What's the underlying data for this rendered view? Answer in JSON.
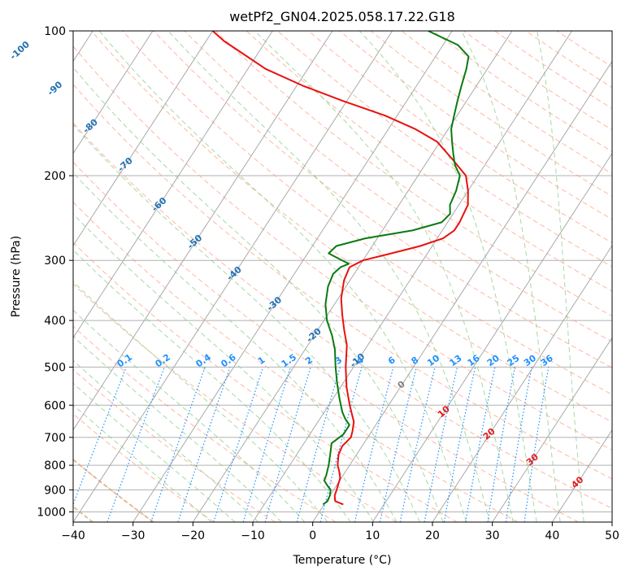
{
  "chart_data": {
    "type": "skew-t",
    "title": "wetPf2_GN04.2025.058.17.22.G18",
    "xlabel": "Temperature (°C)",
    "ylabel": "Pressure (hPa)",
    "xlim": [
      -40,
      50
    ],
    "ylim": [
      1050,
      100
    ],
    "y_scale": "log",
    "grid": true,
    "x_ticks": [
      -40,
      -30,
      -20,
      -10,
      0,
      10,
      20,
      30,
      40,
      50
    ],
    "x_tick_labels": [
      "−40",
      "−30",
      "−20",
      "−10",
      "0",
      "10",
      "20",
      "30",
      "40",
      "50"
    ],
    "y_ticks": [
      100,
      200,
      300,
      400,
      500,
      600,
      700,
      800,
      900,
      1000
    ],
    "y_tick_labels": [
      "100",
      "200",
      "300",
      "400",
      "500",
      "600",
      "700",
      "800",
      "900",
      "1000"
    ],
    "mixing_ratio_labels": [
      "0.1",
      "0.2",
      "0.4",
      "0.6",
      "1",
      "1.5",
      "2",
      "3",
      "4",
      "6",
      "8",
      "10",
      "13",
      "16",
      "20",
      "25",
      "30",
      "36"
    ],
    "isotherm_labels_blue": [
      "-100",
      "-90",
      "-80",
      "-70",
      "-60",
      "-50",
      "-40",
      "-30",
      "-20",
      "-10"
    ],
    "isotherm_label_gray": "0",
    "isotherm_labels_red": [
      "10",
      "20",
      "30",
      "40"
    ],
    "colors": {
      "temperature": "#e8110f",
      "dewpoint": "#0a7a10",
      "isotherm_label_cold": "#2171b5",
      "isotherm_label_warm": "#e31a1c",
      "mixing_ratio": "#1e90ff",
      "dry_adiabat": "#ff9f80",
      "moist_adiabat": "#8fcf8f",
      "isotherm": "#a9a9a9",
      "special": "#d2b48c"
    },
    "series": [
      {
        "points": [
          [
            3.2,
            965
          ],
          [
            1.5,
            950
          ],
          [
            0.8,
            925
          ],
          [
            0.5,
            900
          ],
          [
            -0.2,
            850
          ],
          [
            -1.2,
            820
          ],
          [
            -2.0,
            800
          ],
          [
            -3.0,
            760
          ],
          [
            -3.3,
            730
          ],
          [
            -2.8,
            700
          ],
          [
            -3.2,
            680
          ],
          [
            -4.0,
            650
          ],
          [
            -6.5,
            600
          ],
          [
            -9.0,
            550
          ],
          [
            -11.3,
            500
          ],
          [
            -13.5,
            450
          ],
          [
            -15.5,
            420
          ],
          [
            -17.5,
            390
          ],
          [
            -19.5,
            360
          ],
          [
            -21.0,
            330
          ],
          [
            -21.5,
            310
          ],
          [
            -20.0,
            300
          ],
          [
            -16.0,
            290
          ],
          [
            -12.0,
            280
          ],
          [
            -9.0,
            270
          ],
          [
            -8.0,
            260
          ],
          [
            -8.0,
            250
          ],
          [
            -8.5,
            230
          ],
          [
            -10.0,
            215
          ],
          [
            -12.0,
            200
          ],
          [
            -16.0,
            185
          ],
          [
            -20.5,
            170
          ],
          [
            -25.5,
            160
          ],
          [
            -32.0,
            150
          ],
          [
            -40.5,
            140
          ],
          [
            -49.0,
            130
          ],
          [
            -57.0,
            120
          ],
          [
            -63.5,
            110
          ],
          [
            -67.0,
            105
          ],
          [
            -70.0,
            100
          ]
        ]
      },
      {
        "points": [
          [
            -0.2,
            965
          ],
          [
            0.2,
            950
          ],
          [
            0.0,
            925
          ],
          [
            -0.5,
            900
          ],
          [
            -1.6,
            880
          ],
          [
            -2.6,
            860
          ],
          [
            -2.8,
            840
          ],
          [
            -3.5,
            800
          ],
          [
            -4.4,
            760
          ],
          [
            -5.4,
            720
          ],
          [
            -4.4,
            690
          ],
          [
            -4.4,
            660
          ],
          [
            -5.8,
            640
          ],
          [
            -7.0,
            620
          ],
          [
            -9.0,
            580
          ],
          [
            -11.0,
            540
          ],
          [
            -13.0,
            500
          ],
          [
            -15.0,
            460
          ],
          [
            -17.0,
            430
          ],
          [
            -19.5,
            400
          ],
          [
            -21.5,
            370
          ],
          [
            -23.0,
            340
          ],
          [
            -23.5,
            320
          ],
          [
            -23.0,
            310
          ],
          [
            -22.0,
            305
          ],
          [
            -25.0,
            295
          ],
          [
            -26.5,
            290
          ],
          [
            -26.0,
            280
          ],
          [
            -22.0,
            270
          ],
          [
            -15.0,
            260
          ],
          [
            -11.0,
            250
          ],
          [
            -10.5,
            240
          ],
          [
            -11.5,
            230
          ],
          [
            -12.0,
            215
          ],
          [
            -13.0,
            200
          ],
          [
            -15.0,
            190
          ],
          [
            -16.5,
            180
          ],
          [
            -18.0,
            170
          ],
          [
            -19.5,
            160
          ],
          [
            -20.5,
            150
          ],
          [
            -21.5,
            140
          ],
          [
            -22.5,
            130
          ],
          [
            -23.5,
            120
          ],
          [
            -24.5,
            113
          ],
          [
            -27.5,
            107
          ],
          [
            -34.0,
            100
          ]
        ]
      }
    ]
  }
}
